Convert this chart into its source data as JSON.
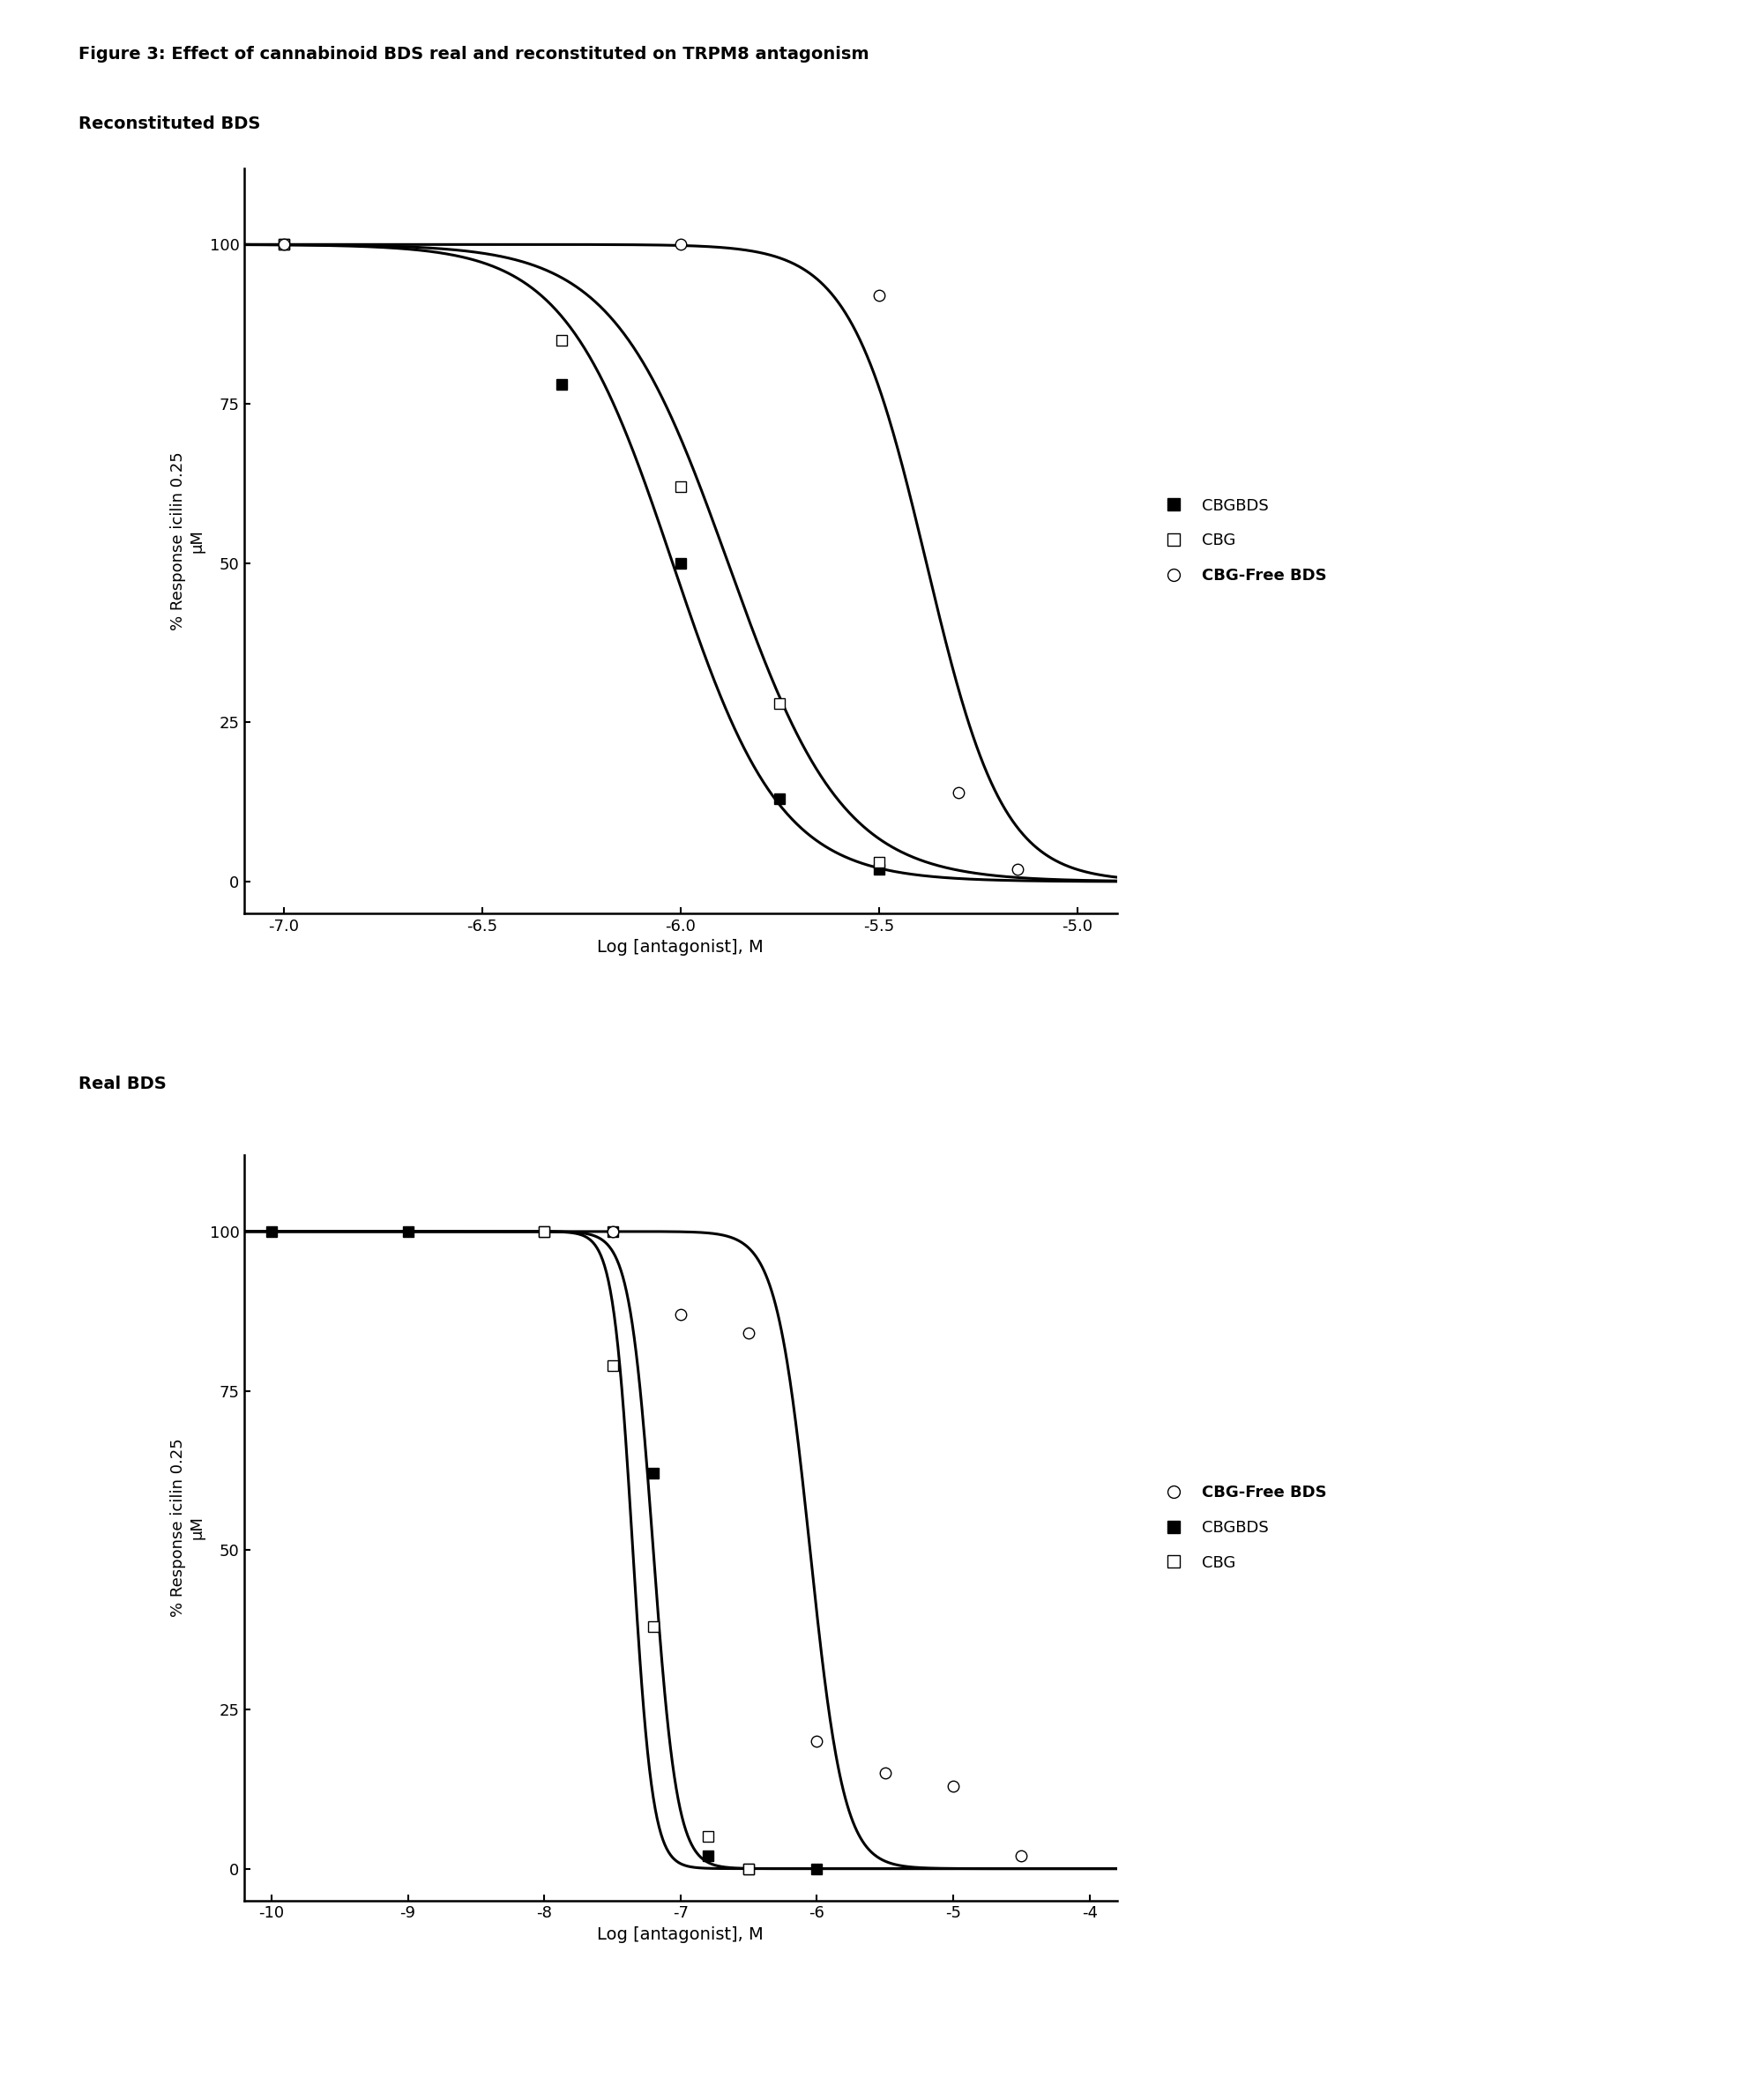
{
  "figure_title": "Figure 3: Effect of cannabinoid BDS real and reconstituted on TRPM8 antagonism",
  "figure_title_fontsize": 14,
  "figure_title_bold": true,
  "panel1_title": "Reconstituted BDS",
  "panel1_title_fontsize": 14,
  "panel1_title_bold": true,
  "panel2_title": "Real BDS",
  "panel2_title_fontsize": 14,
  "panel2_title_bold": true,
  "ylabel": "% Response icilin 0.25\nμM",
  "xlabel": "Log [antagonist], M",
  "panel1": {
    "xlim": [
      -7.1,
      -4.9
    ],
    "ylim": [
      -5,
      112
    ],
    "xticks": [
      -7.0,
      -6.5,
      -6.0,
      -5.5,
      -5.0
    ],
    "yticks": [
      0,
      25,
      50,
      75,
      100
    ],
    "CBGBDS": {
      "points_x": [
        -7.0,
        -6.3,
        -6.0,
        -5.75,
        -5.5
      ],
      "points_y": [
        100,
        78,
        50,
        13,
        2
      ],
      "ec50": -6.02,
      "hill": 3.2
    },
    "CBG": {
      "points_x": [
        -7.0,
        -6.3,
        -6.0,
        -5.75,
        -5.5
      ],
      "points_y": [
        100,
        85,
        62,
        28,
        3
      ],
      "ec50": -5.88,
      "hill": 3.0
    },
    "CBGFreeBDS": {
      "points_x": [
        -7.0,
        -6.0,
        -5.5,
        -5.3,
        -5.15
      ],
      "points_y": [
        100,
        100,
        92,
        14,
        2
      ],
      "ec50": -5.38,
      "hill": 4.5
    },
    "legend_labels": [
      "CBGBDS",
      "CBG",
      "CBG-Free BDS"
    ],
    "legend_bold": [
      false,
      false,
      true
    ]
  },
  "panel2": {
    "xlim": [
      -10.2,
      -3.8
    ],
    "ylim": [
      -5,
      112
    ],
    "xticks": [
      -10,
      -9,
      -8,
      -7,
      -6,
      -5,
      -4
    ],
    "yticks": [
      0,
      25,
      50,
      75,
      100
    ],
    "CBGBDS": {
      "points_x": [
        -10.0,
        -9.0,
        -8.0,
        -7.5,
        -7.2,
        -6.8,
        -6.5,
        -6.0
      ],
      "points_y": [
        100,
        100,
        100,
        100,
        62,
        2,
        0,
        0
      ],
      "ec50": -7.35,
      "hill": 6.0
    },
    "CBG": {
      "points_x": [
        -8.0,
        -7.5,
        -7.2,
        -6.8,
        -6.5
      ],
      "points_y": [
        100,
        79,
        38,
        5,
        0
      ],
      "ec50": -7.2,
      "hill": 5.0
    },
    "CBGFreeBDS": {
      "points_x": [
        -7.5,
        -7.0,
        -6.5,
        -6.0,
        -5.5,
        -5.0,
        -4.5
      ],
      "points_y": [
        100,
        87,
        84,
        20,
        15,
        13,
        2
      ],
      "ec50": -6.05,
      "hill": 3.5
    },
    "legend_labels": [
      "CBG-Free BDS",
      "CBGBDS",
      "CBG"
    ],
    "legend_bold": [
      true,
      false,
      false
    ]
  },
  "marker_size": 9,
  "line_width": 2.2,
  "color": "black",
  "bg_color": "white"
}
